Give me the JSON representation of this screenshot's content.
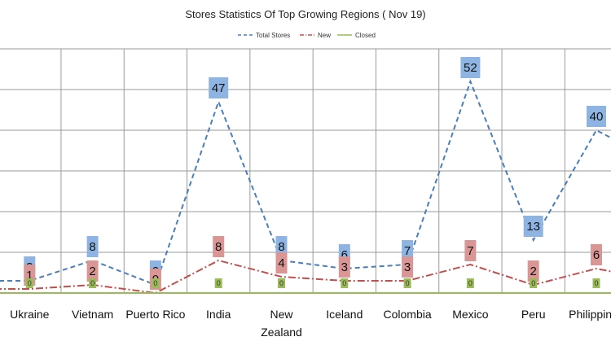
{
  "chart_data": {
    "type": "line",
    "title": "Stores Statistics Of Top Growing Regions ( Nov 19)",
    "categories": [
      "",
      "Ukraine",
      "Vietnam",
      "Puerto Rico",
      "India",
      "New Zealand",
      "Iceland",
      "Colombia",
      "Mexico",
      "Peru",
      "Philippines",
      ""
    ],
    "categories_display": [
      [
        ""
      ],
      [
        "Ukraine"
      ],
      [
        "Vietnam"
      ],
      [
        "Puerto Rico"
      ],
      [
        "India"
      ],
      [
        "New",
        "Zealand"
      ],
      [
        "Iceland"
      ],
      [
        "Colombia"
      ],
      [
        "Mexico"
      ],
      [
        "Peru"
      ],
      [
        "Philippines"
      ],
      [
        ""
      ]
    ],
    "series": [
      {
        "name": "Total Stores",
        "color": "#4a7ebb",
        "dash": "dashed",
        "values": [
          3,
          3,
          8,
          2,
          47,
          8,
          6,
          7,
          52,
          13,
          40,
          32
        ],
        "labels": [
          "",
          "3",
          "8",
          "2",
          "47",
          "8",
          "6",
          "7",
          "52",
          "13",
          "40",
          ""
        ],
        "label_fill": "#8eb4e3"
      },
      {
        "name": "New",
        "color": "#c0504d",
        "dash": "dashdot",
        "values": [
          1,
          1,
          2,
          0,
          8,
          4,
          3,
          3,
          7,
          2,
          6,
          3
        ],
        "labels": [
          "",
          "1",
          "2",
          "0",
          "8",
          "4",
          "3",
          "3",
          "7",
          "2",
          "6",
          ""
        ],
        "label_fill": "#d99694"
      },
      {
        "name": "Closed",
        "color": "#9bbb59",
        "dash": "solid",
        "values": [
          0,
          0,
          0,
          0,
          0,
          0,
          0,
          0,
          0,
          0,
          0,
          0
        ],
        "labels": [
          "",
          "0",
          "0",
          "0",
          "0",
          "0",
          "0",
          "0",
          "0",
          "0",
          "0",
          ""
        ],
        "label_fill": "#9bbb59"
      }
    ],
    "ylim": [
      0,
      60
    ],
    "grid": true,
    "legend_position": "top-center"
  }
}
